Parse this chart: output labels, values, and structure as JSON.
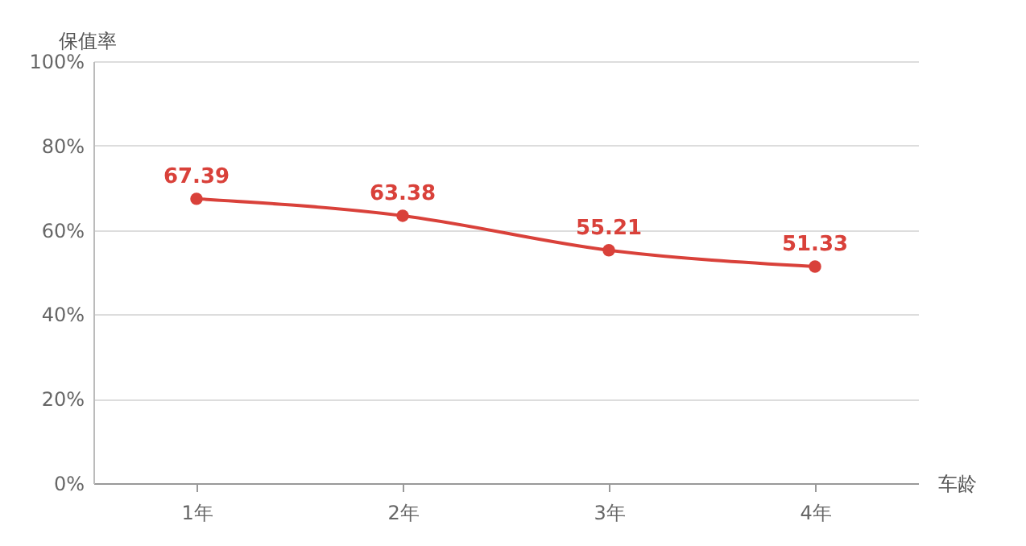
{
  "chart_data": {
    "type": "line",
    "ylabel": "保值率",
    "xlabel": "车龄",
    "categories": [
      "1年",
      "2年",
      "3年",
      "4年"
    ],
    "series": [
      {
        "color": "#d9413a",
        "values": [
          67.39,
          63.38,
          55.21,
          51.33
        ]
      }
    ],
    "ylim": [
      0,
      100
    ],
    "yticks": [
      {
        "value": 0,
        "label": "0%"
      },
      {
        "value": 20,
        "label": "20%"
      },
      {
        "value": 40,
        "label": "40%"
      },
      {
        "value": 60,
        "label": "60%"
      },
      {
        "value": 80,
        "label": "80%"
      },
      {
        "value": 100,
        "label": "100%"
      }
    ],
    "grid": "y",
    "marker": "circle",
    "data_labels": true
  }
}
